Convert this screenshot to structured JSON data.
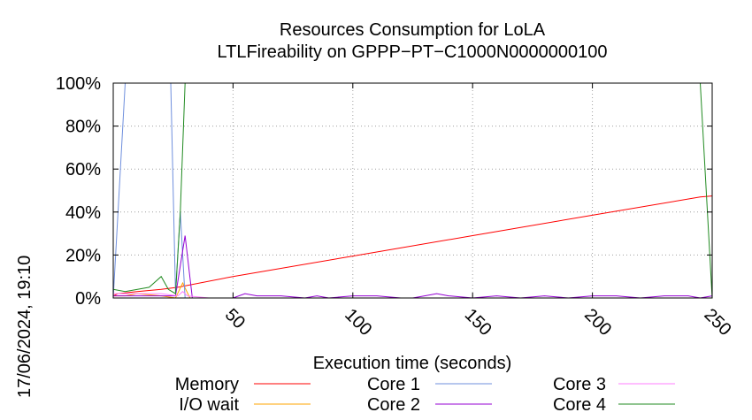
{
  "chart_data": {
    "type": "line",
    "title": [
      "Resources Consumption for LoLA",
      "LTLFireability on GPPP−PT−C1000N0000000100"
    ],
    "xlabel": "Execution time (seconds)",
    "ylabel": "",
    "timestamp": "17/06/2024, 19:10",
    "xlim": [
      0,
      250
    ],
    "ylim": [
      0,
      100
    ],
    "x_ticks": [
      50,
      100,
      150,
      200,
      250
    ],
    "y_ticks": [
      0,
      20,
      40,
      60,
      80,
      100
    ],
    "y_tick_labels": [
      "0%",
      "20%",
      "40%",
      "60%",
      "80%",
      "100%"
    ],
    "grid": true,
    "legend_position": "bottom",
    "series": [
      {
        "name": "Memory",
        "color": "#ff0000",
        "points": [
          [
            0,
            1
          ],
          [
            2,
            2
          ],
          [
            10,
            3
          ],
          [
            20,
            4
          ],
          [
            27,
            5
          ],
          [
            50,
            10
          ],
          [
            100,
            19.5
          ],
          [
            150,
            29
          ],
          [
            200,
            38.5
          ],
          [
            245,
            47
          ],
          [
            250,
            47.5
          ]
        ]
      },
      {
        "name": "I/O wait",
        "color": "#ffa500",
        "points": [
          [
            0,
            1
          ],
          [
            5,
            1
          ],
          [
            10,
            2
          ],
          [
            20,
            1
          ],
          [
            26,
            0
          ],
          [
            29,
            7
          ],
          [
            32,
            0
          ],
          [
            250,
            0
          ]
        ]
      },
      {
        "name": "Core 1",
        "color": "#6f8fdd",
        "points": [
          [
            0,
            0
          ],
          [
            5,
            100
          ],
          [
            24,
            100
          ],
          [
            26,
            2
          ],
          [
            28,
            40
          ],
          [
            30,
            0
          ],
          [
            250,
            0
          ]
        ]
      },
      {
        "name": "Core 2",
        "color": "#9400d3",
        "points": [
          [
            0,
            1
          ],
          [
            10,
            1
          ],
          [
            20,
            1
          ],
          [
            26,
            1
          ],
          [
            30,
            29
          ],
          [
            33,
            0
          ],
          [
            50,
            0
          ],
          [
            55,
            2
          ],
          [
            60,
            1
          ],
          [
            70,
            1
          ],
          [
            80,
            0
          ],
          [
            85,
            1
          ],
          [
            90,
            0
          ],
          [
            100,
            1
          ],
          [
            110,
            1
          ],
          [
            120,
            0
          ],
          [
            125,
            0
          ],
          [
            130,
            1
          ],
          [
            135,
            2
          ],
          [
            140,
            1
          ],
          [
            150,
            0
          ],
          [
            160,
            1
          ],
          [
            170,
            0
          ],
          [
            180,
            1
          ],
          [
            190,
            0
          ],
          [
            200,
            1
          ],
          [
            210,
            1
          ],
          [
            220,
            0
          ],
          [
            230,
            1
          ],
          [
            240,
            1
          ],
          [
            245,
            0
          ],
          [
            250,
            1
          ]
        ]
      },
      {
        "name": "Core 3",
        "color": "#ff7fff",
        "points": [
          [
            0,
            2
          ],
          [
            10,
            2
          ],
          [
            20,
            2
          ],
          [
            27,
            1
          ],
          [
            29,
            3
          ],
          [
            31,
            1
          ],
          [
            40,
            0
          ],
          [
            250,
            0
          ]
        ]
      },
      {
        "name": "Core 4",
        "color": "#228b22",
        "points": [
          [
            0,
            4
          ],
          [
            5,
            3
          ],
          [
            15,
            5
          ],
          [
            20,
            10
          ],
          [
            23,
            4
          ],
          [
            26,
            2
          ],
          [
            28,
            40
          ],
          [
            30,
            100
          ],
          [
            245,
            100
          ],
          [
            250,
            0
          ]
        ]
      }
    ]
  }
}
